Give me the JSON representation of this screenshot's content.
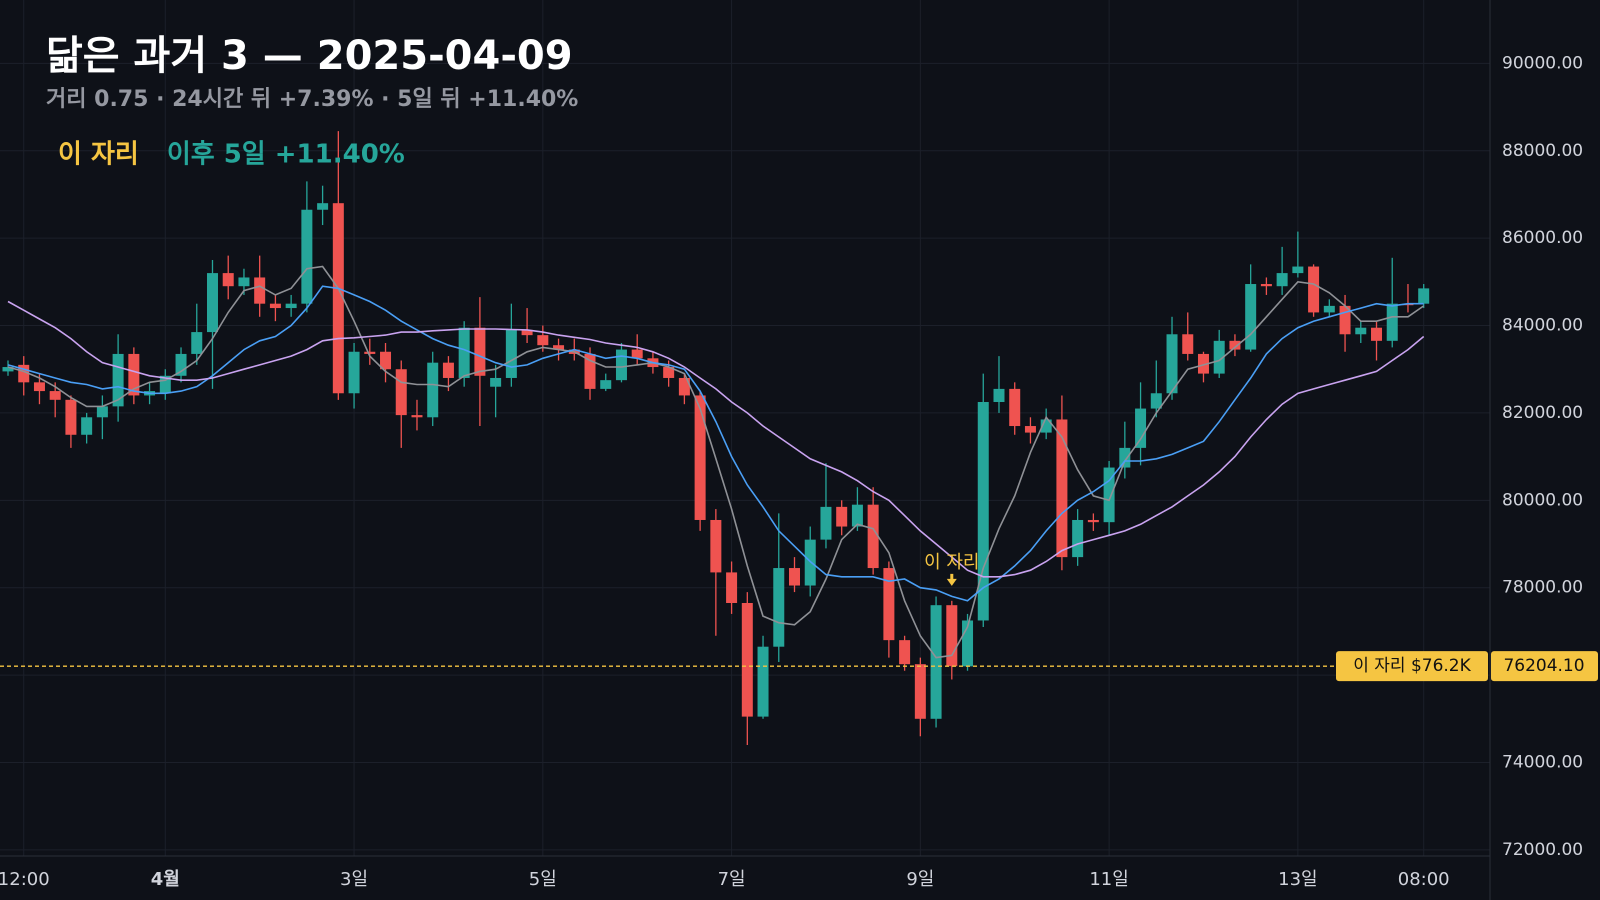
{
  "chart_data": {
    "type": "candlestick",
    "title": "닮은 과거 3 — 2025-04-09",
    "subtitle": "거리 0.75 · 24시간 뒤 +7.39% · 5일 뒤 +11.40%",
    "legend": [
      {
        "text": "이 자리",
        "color": "#f5c542"
      },
      {
        "text": "이후 5일 +11.40%",
        "color": "#26a69a"
      }
    ],
    "annotation": "이 자리",
    "marker": {
      "value": 76204.1,
      "label": "76204.10",
      "tag": "이 자리 $76.2K",
      "color": "#f5c542"
    },
    "categories": [
      null,
      "12:00",
      null,
      null,
      null,
      null,
      null,
      null,
      null,
      null,
      "4월",
      null,
      null,
      null,
      null,
      null,
      null,
      null,
      null,
      null,
      null,
      null,
      "3일",
      null,
      null,
      null,
      null,
      null,
      null,
      null,
      null,
      null,
      null,
      null,
      "5일",
      null,
      null,
      null,
      null,
      null,
      null,
      null,
      null,
      null,
      null,
      null,
      "7일",
      null,
      null,
      null,
      null,
      null,
      null,
      null,
      null,
      null,
      null,
      null,
      "9일",
      null,
      null,
      null,
      null,
      null,
      null,
      null,
      null,
      null,
      null,
      null,
      "11일",
      null,
      null,
      null,
      null,
      null,
      null,
      null,
      null,
      null,
      null,
      null,
      "13일",
      null,
      null,
      null,
      null,
      null,
      null,
      null,
      "08:00"
    ],
    "candles": {
      "up_color": "#26a69a",
      "down_color": "#ef5350",
      "open": [
        82950,
        83100,
        82700,
        82500,
        82300,
        81500,
        81900,
        82150,
        83350,
        82400,
        82450,
        82850,
        83350,
        83850,
        85200,
        84900,
        85100,
        84500,
        84400,
        84500,
        86650,
        86800,
        82450,
        83400,
        83400,
        83000,
        81950,
        81900,
        83150,
        82800,
        83950,
        82600,
        82800,
        83900,
        83780,
        83550,
        83450,
        83350,
        82550,
        82750,
        83450,
        83250,
        83050,
        82800,
        82400,
        79550,
        78350,
        77650,
        75050,
        76650,
        78450,
        78050,
        79100,
        79850,
        79400,
        79900,
        78450,
        76800,
        76250,
        75000,
        77600,
        76200,
        77250,
        82250,
        82550,
        81700,
        81550,
        81850,
        78700,
        79550,
        79500,
        80750,
        81200,
        82100,
        82450,
        83800,
        83350,
        82900,
        83650,
        83450,
        84950,
        84900,
        85200,
        85350,
        84300,
        84450,
        83800,
        83950,
        83650,
        84500,
        84500
      ],
      "high": [
        83200,
        83300,
        82900,
        82700,
        82400,
        82000,
        82400,
        83800,
        83500,
        82700,
        83000,
        83500,
        84500,
        85500,
        85600,
        85300,
        85600,
        84700,
        84700,
        87300,
        87200,
        88450,
        83600,
        83700,
        83600,
        83200,
        82300,
        83400,
        83300,
        84100,
        84650,
        83100,
        84500,
        84400,
        84000,
        83700,
        83700,
        83500,
        82900,
        83600,
        83800,
        83400,
        83200,
        82900,
        82500,
        79800,
        78600,
        77900,
        76900,
        79700,
        78700,
        79400,
        80850,
        80000,
        80300,
        80300,
        78600,
        76900,
        76400,
        77800,
        77700,
        77400,
        82900,
        83300,
        82700,
        81900,
        82100,
        82400,
        79800,
        79700,
        80900,
        81800,
        82700,
        83200,
        84200,
        84300,
        83400,
        83900,
        83800,
        85400,
        85100,
        85800,
        86150,
        85400,
        84600,
        84700,
        84100,
        84100,
        85550,
        84950,
        84950
      ],
      "low": [
        82850,
        82400,
        82200,
        81900,
        81200,
        81300,
        81400,
        81800,
        82200,
        82200,
        82300,
        82700,
        83100,
        82550,
        84600,
        84700,
        84200,
        84100,
        84200,
        84300,
        86300,
        82300,
        82100,
        83100,
        82700,
        81200,
        81600,
        81700,
        82500,
        82600,
        81700,
        81900,
        82600,
        83600,
        83400,
        83200,
        83200,
        82300,
        82500,
        82700,
        83100,
        82900,
        82600,
        82200,
        79300,
        76900,
        77400,
        74400,
        75000,
        76300,
        77900,
        77800,
        78900,
        79200,
        79300,
        78300,
        76400,
        76100,
        74600,
        74800,
        75900,
        76100,
        77100,
        82000,
        81500,
        81300,
        81400,
        78400,
        78500,
        79300,
        79200,
        80500,
        80800,
        81900,
        82300,
        83200,
        82700,
        82800,
        83300,
        83400,
        84700,
        84700,
        85100,
        84200,
        84200,
        83400,
        83600,
        83200,
        83500,
        84300,
        84400
      ],
      "close": [
        83050,
        82700,
        82500,
        82300,
        81500,
        81900,
        82150,
        83350,
        82400,
        82500,
        82850,
        83350,
        83850,
        85200,
        84900,
        85100,
        84500,
        84400,
        84500,
        86650,
        86800,
        82450,
        83400,
        83350,
        83000,
        81950,
        81900,
        83150,
        82800,
        83950,
        82850,
        82800,
        83900,
        83780,
        83550,
        83450,
        83350,
        82550,
        82750,
        83450,
        83250,
        83050,
        82800,
        82400,
        79550,
        78350,
        77650,
        75050,
        76650,
        78450,
        78050,
        79100,
        79850,
        79400,
        79900,
        78450,
        76800,
        76250,
        75000,
        77600,
        76204.1,
        77250,
        82250,
        82550,
        81700,
        81550,
        81850,
        78700,
        79550,
        79500,
        80750,
        81200,
        82100,
        82450,
        83800,
        83350,
        82900,
        83650,
        83450,
        84950,
        84900,
        85200,
        85350,
        84300,
        84450,
        83800,
        83950,
        83650,
        84500,
        84480,
        84850
      ]
    },
    "lines": [
      {
        "color": "#8f9196",
        "values": [
          83050,
          82950,
          82800,
          82600,
          82350,
          82150,
          82150,
          82300,
          82550,
          82700,
          82750,
          82950,
          83200,
          83700,
          84300,
          84800,
          84900,
          84700,
          84850,
          85300,
          85350,
          84850,
          84100,
          83300,
          82950,
          82700,
          82650,
          82650,
          82600,
          82850,
          82950,
          83000,
          83200,
          83400,
          83500,
          83450,
          83400,
          83200,
          83050,
          83050,
          83100,
          83150,
          83050,
          82900,
          82100,
          80950,
          79800,
          78500,
          77350,
          77200,
          77150,
          77450,
          78200,
          79100,
          79450,
          79350,
          78800,
          77700,
          76900,
          76400,
          76450,
          77100,
          78450,
          79350,
          80100,
          81100,
          81900,
          81450,
          80700,
          80100,
          80000,
          80900,
          81400,
          82000,
          82500,
          83000,
          83100,
          83200,
          83500,
          83800,
          84200,
          84600,
          85000,
          84950,
          84750,
          84450,
          84100,
          84100,
          84200,
          84200,
          84450
        ]
      },
      {
        "color": "#4a9ff5",
        "values": [
          83100,
          83000,
          82900,
          82800,
          82700,
          82650,
          82550,
          82600,
          82500,
          82450,
          82450,
          82500,
          82600,
          82850,
          83150,
          83450,
          83650,
          83750,
          84000,
          84400,
          84900,
          84850,
          84700,
          84550,
          84350,
          84100,
          83900,
          83700,
          83550,
          83450,
          83300,
          83150,
          83050,
          83100,
          83250,
          83350,
          83450,
          83350,
          83250,
          83300,
          83250,
          83150,
          83100,
          83000,
          82500,
          81800,
          81000,
          80350,
          79850,
          79300,
          78950,
          78600,
          78300,
          78250,
          78250,
          78250,
          78150,
          78200,
          78000,
          77950,
          77800,
          77700,
          78000,
          78200,
          78500,
          78850,
          79300,
          79700,
          80000,
          80200,
          80450,
          80900,
          80900,
          80950,
          81050,
          81200,
          81350,
          81800,
          82300,
          82800,
          83350,
          83700,
          83950,
          84100,
          84200,
          84300,
          84400,
          84500,
          84450,
          84500,
          84500
        ]
      },
      {
        "color": "#c9a3f0",
        "values": [
          84550,
          84350,
          84150,
          83950,
          83700,
          83400,
          83150,
          83050,
          82950,
          82850,
          82800,
          82750,
          82750,
          82800,
          82900,
          83000,
          83100,
          83200,
          83300,
          83450,
          83650,
          83700,
          83720,
          83750,
          83780,
          83850,
          83850,
          83880,
          83900,
          83920,
          83920,
          83920,
          83910,
          83900,
          83850,
          83780,
          83730,
          83680,
          83600,
          83550,
          83500,
          83400,
          83250,
          83050,
          82800,
          82550,
          82250,
          82000,
          81700,
          81450,
          81200,
          80950,
          80800,
          80650,
          80450,
          80200,
          80000,
          79650,
          79300,
          79000,
          78700,
          78400,
          78250,
          78250,
          78300,
          78400,
          78600,
          78850,
          79000,
          79100,
          79200,
          79300,
          79450,
          79650,
          79850,
          80100,
          80350,
          80650,
          81000,
          81450,
          81850,
          82200,
          82450,
          82550,
          82650,
          82750,
          82850,
          82950,
          83200,
          83450,
          83750
        ]
      }
    ],
    "ylim": [
      71860,
      91450
    ],
    "yticks": [
      {
        "value": 72000,
        "label": "72000.00"
      },
      {
        "value": 74000,
        "label": "74000.00"
      },
      {
        "value": 76000,
        "label": "76000.00"
      },
      {
        "value": 78000,
        "label": "78000.00"
      },
      {
        "value": 80000,
        "label": "80000.00"
      },
      {
        "value": 82000,
        "label": "82000.00"
      },
      {
        "value": 84000,
        "label": "84000.00"
      },
      {
        "value": 86000,
        "label": "86000.00"
      },
      {
        "value": 88000,
        "label": "88000.00"
      },
      {
        "value": 90000,
        "label": "90000.00"
      }
    ],
    "grid": true
  }
}
